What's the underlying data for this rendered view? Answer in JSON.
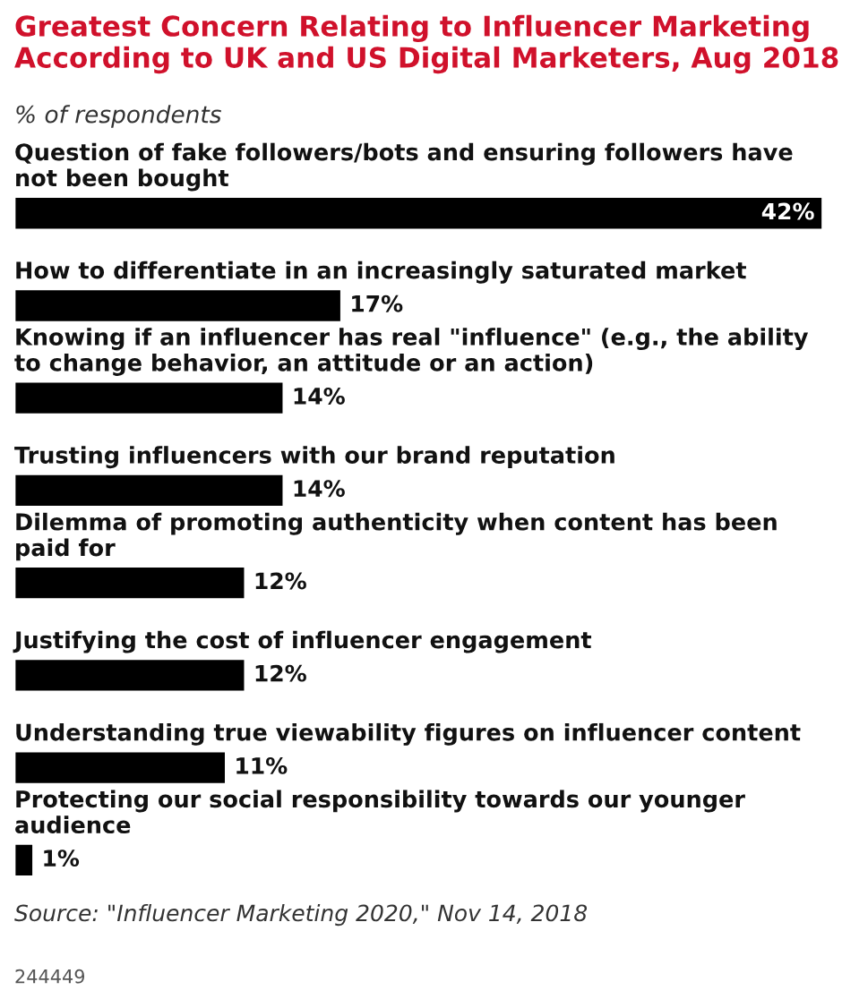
{
  "chart_data": {
    "type": "bar",
    "orientation": "horizontal",
    "title": "Greatest Concern Relating to Influencer Marketing According to UK and US Digital Marketers, Aug 2018",
    "subtitle": "% of respondents",
    "categories": [
      "Question of fake followers/bots and ensuring followers have not been bought",
      "How to differentiate in an increasingly saturated market",
      "Knowing if an influencer has real \"influence\" (e.g., the ability to change behavior, an attitude or an action)",
      "Trusting influencers with our brand reputation",
      "Dilemma of promoting authenticity when content has been paid for",
      "Justifying the cost of influencer engagement",
      "Understanding true viewability figures on influencer content",
      "Protecting our social responsibility towards our younger audience"
    ],
    "values": [
      42,
      17,
      14,
      14,
      12,
      12,
      11,
      1
    ],
    "value_labels": [
      "42%",
      "17%",
      "14%",
      "14%",
      "12%",
      "12%",
      "11%",
      "1%"
    ],
    "color": "#000000",
    "annotations": [
      "Source: \"Influencer Marketing 2020,\" Nov 14, 2018",
      "244449"
    ]
  }
}
